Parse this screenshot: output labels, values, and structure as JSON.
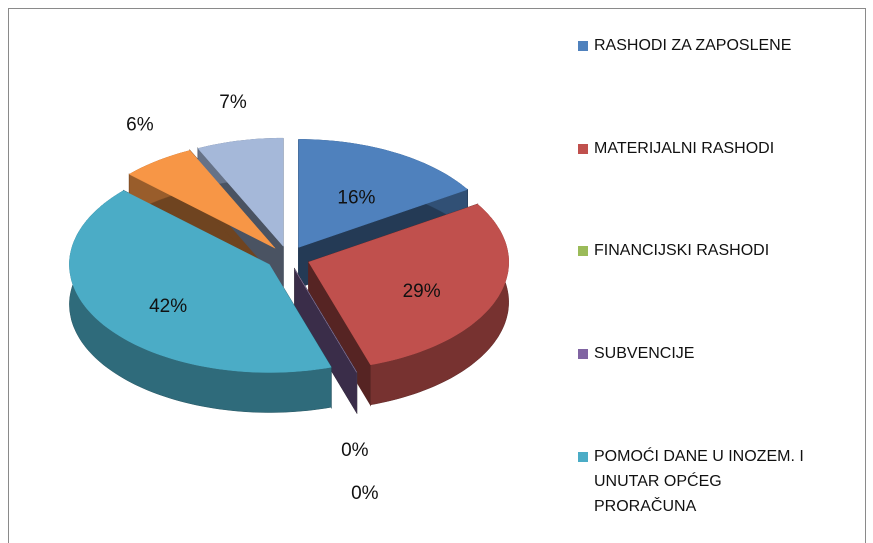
{
  "chart_data": {
    "type": "pie",
    "categories": [
      "RASHODI ZA ZAPOSLENE",
      "MATERIJALNI RASHODI",
      "FINANCIJSKI RASHODI",
      "SUBVENCIJE",
      "POMOĆI DANE U INOZEM. I UNUTAR OPĆEG PRORAČUNA",
      null,
      null
    ],
    "values": [
      16,
      29,
      0,
      0,
      42,
      6,
      7
    ],
    "value_labels": [
      "16%",
      "29%",
      "0%",
      "0%",
      "42%",
      "6%",
      "7%"
    ],
    "colors": [
      "#4f81bd",
      "#c0504d",
      "#9bbb59",
      "#8064a2",
      "#4bacc6",
      "#f79646",
      "#a5b8d9"
    ]
  }
}
